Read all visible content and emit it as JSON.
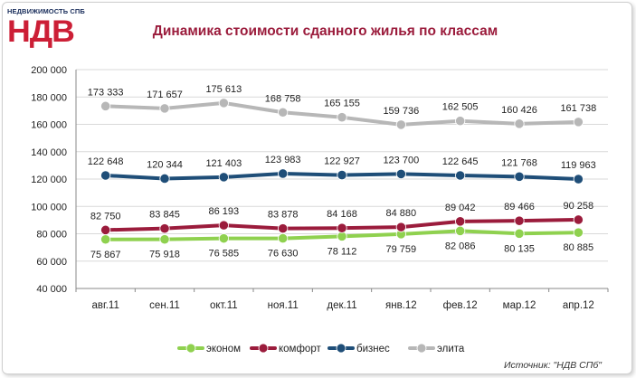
{
  "logo": {
    "top_text": "НЕДВИЖИМОСТЬ СПБ",
    "main_text": "НДВ"
  },
  "source": "Источник: \"НДВ СПб\"",
  "colors": {
    "title": "#9b1c3c",
    "econom": "#8fd14f",
    "comfort": "#9b1c3c",
    "business": "#1f4e78",
    "elite": "#b7b7b7",
    "grid": "#d9d9d9"
  },
  "chart_data": {
    "type": "line",
    "title": "Динамика стоимости сданного жилья по классам",
    "xlabel": "",
    "ylabel": "",
    "categories": [
      "авг.11",
      "сен.11",
      "окт.11",
      "ноя.11",
      "дек.11",
      "янв.12",
      "фев.12",
      "мар.12",
      "апр.12"
    ],
    "ylim": [
      40000,
      200000
    ],
    "yticks": [
      40000,
      60000,
      80000,
      100000,
      120000,
      140000,
      160000,
      180000,
      200000
    ],
    "ytick_labels": [
      "40 000",
      "60 000",
      "80 000",
      "100 000",
      "120 000",
      "140 000",
      "160 000",
      "180 000",
      "200 000"
    ],
    "grid": true,
    "legend_position": "bottom",
    "series": [
      {
        "name": "эконом",
        "color": "#8fd14f",
        "values": [
          75867,
          75918,
          76585,
          76630,
          78112,
          79759,
          82086,
          80135,
          80885
        ],
        "labels": [
          "75 867",
          "75 918",
          "76 585",
          "76 630",
          "78 112",
          "79 759",
          "82 086",
          "80 135",
          "80 885"
        ],
        "label_side": "below"
      },
      {
        "name": "комфорт",
        "color": "#9b1c3c",
        "values": [
          82750,
          83845,
          86193,
          83878,
          84168,
          84880,
          89042,
          89466,
          90258
        ],
        "labels": [
          "82 750",
          "83 845",
          "86 193",
          "83 878",
          "84 168",
          "84 880",
          "89 042",
          "89 466",
          "90 258"
        ],
        "label_side": "above"
      },
      {
        "name": "бизнес",
        "color": "#1f4e78",
        "values": [
          122648,
          120344,
          121403,
          123983,
          122927,
          123700,
          122645,
          121768,
          119963
        ],
        "labels": [
          "122 648",
          "120 344",
          "121 403",
          "123 983",
          "122 927",
          "123 700",
          "122 645",
          "121 768",
          "119 963"
        ],
        "label_side": "above"
      },
      {
        "name": "элита",
        "color": "#b7b7b7",
        "values": [
          173333,
          171657,
          175613,
          168758,
          165155,
          159736,
          162505,
          160426,
          161738
        ],
        "labels": [
          "173 333",
          "171 657",
          "175 613",
          "168 758",
          "165 155",
          "159 736",
          "162 505",
          "160 426",
          "161 738"
        ],
        "label_side": "above"
      }
    ]
  }
}
